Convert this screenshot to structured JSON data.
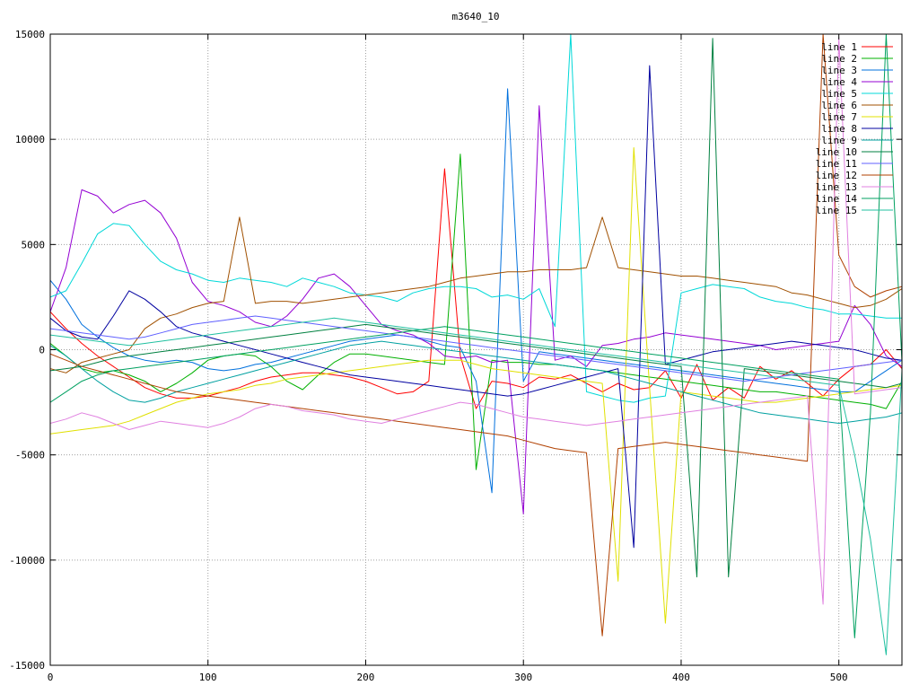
{
  "chart_data": {
    "type": "line",
    "title": "m3640_10",
    "xlabel": "",
    "ylabel": "",
    "xlim": [
      0,
      540
    ],
    "ylim": [
      -15000,
      15000
    ],
    "x_ticks": [
      0,
      100,
      200,
      300,
      400,
      500
    ],
    "y_ticks": [
      -15000,
      -10000,
      -5000,
      0,
      5000,
      10000,
      15000
    ],
    "grid": true,
    "legend_position": "top-right",
    "sample_step": 10,
    "series": [
      {
        "name": "line 1",
        "color": "#ff0000",
        "values": [
          1800,
          1000,
          300,
          -300,
          -800,
          -1300,
          -1800,
          -2100,
          -2300,
          -2300,
          -2200,
          -2000,
          -1800,
          -1500,
          -1300,
          -1200,
          -1100,
          -1100,
          -1200,
          -1300,
          -1500,
          -1800,
          -2100,
          -2000,
          -1500,
          8600,
          -300,
          -2800,
          -1500,
          -1600,
          -1800,
          -1300,
          -1400,
          -1200,
          -1600,
          -2000,
          -1600,
          -1900,
          -1800,
          -1000,
          -2300,
          -700,
          -2400,
          -1800,
          -2300,
          -800,
          -1400,
          -1000,
          -1600,
          -2200,
          -1400,
          -800,
          -700,
          0,
          -900
        ]
      },
      {
        "name": "line 2",
        "color": "#00b000",
        "values": [
          300,
          -300,
          -900,
          -1100,
          -1000,
          -1200,
          -1500,
          -2000,
          -1600,
          -1100,
          -500,
          -300,
          -200,
          -300,
          -800,
          -1500,
          -1900,
          -1200,
          -600,
          -200,
          -200,
          -300,
          -400,
          -500,
          -600,
          -700,
          9300,
          -5700,
          -500,
          -600,
          -600,
          -700,
          -700,
          -800,
          -900,
          -1000,
          -1100,
          -1200,
          -1300,
          -1400,
          -1500,
          -1600,
          -1700,
          -1800,
          -1900,
          -2000,
          -2000,
          -2100,
          -2200,
          -2300,
          -2400,
          -2500,
          -2600,
          -2800,
          -1500
        ]
      },
      {
        "name": "line 3",
        "color": "#0070dd",
        "values": [
          3300,
          2400,
          1200,
          600,
          100,
          -300,
          -500,
          -600,
          -500,
          -600,
          -900,
          -1000,
          -900,
          -700,
          -600,
          -400,
          -200,
          0,
          200,
          400,
          500,
          600,
          700,
          600,
          400,
          200,
          100,
          -1500,
          -6800,
          12400,
          -1500,
          -100,
          -200,
          -300,
          -400,
          -500,
          -600,
          -700,
          -800,
          -900,
          -1000,
          -1100,
          -1200,
          -1300,
          -1400,
          -1500,
          -1600,
          -1700,
          -1800,
          -1900,
          -2000,
          -2000,
          -1500,
          -1000,
          -500
        ]
      },
      {
        "name": "line 4",
        "color": "#9400d3",
        "values": [
          1800,
          3900,
          7600,
          7300,
          6500,
          6900,
          7100,
          6500,
          5300,
          3200,
          2300,
          2100,
          1800,
          1300,
          1100,
          1600,
          2400,
          3400,
          3600,
          3000,
          2100,
          1200,
          900,
          700,
          300,
          -300,
          -400,
          -300,
          -600,
          -500,
          -7800,
          11600,
          -500,
          -300,
          -800,
          200,
          300,
          500,
          600,
          800,
          700,
          600,
          500,
          400,
          300,
          200,
          0,
          100,
          200,
          300,
          400,
          2100,
          1200,
          -300,
          -800
        ]
      },
      {
        "name": "line 5",
        "color": "#00d8d8",
        "values": [
          2500,
          2800,
          4100,
          5500,
          6000,
          5900,
          5000,
          4200,
          3800,
          3600,
          3300,
          3200,
          3400,
          3300,
          3200,
          3000,
          3400,
          3200,
          3000,
          2700,
          2600,
          2500,
          2300,
          2700,
          2900,
          3000,
          3000,
          2900,
          2500,
          2600,
          2400,
          2900,
          1100,
          15000,
          -2000,
          -2200,
          -2400,
          -2500,
          -2300,
          -2200,
          2700,
          2900,
          3100,
          3000,
          2900,
          2500,
          2300,
          2200,
          2000,
          1900,
          1700,
          1700,
          1600,
          1500,
          1500
        ]
      },
      {
        "name": "line 6",
        "color": "#a05000",
        "values": [
          -900,
          -1100,
          -600,
          -400,
          -200,
          0,
          1000,
          1500,
          1700,
          2000,
          2200,
          2300,
          6300,
          2200,
          2300,
          2300,
          2200,
          2300,
          2400,
          2500,
          2600,
          2700,
          2800,
          2900,
          3000,
          3200,
          3400,
          3500,
          3600,
          3700,
          3700,
          3800,
          3800,
          3800,
          3900,
          6300,
          3900,
          3800,
          3700,
          3600,
          3500,
          3500,
          3400,
          3300,
          3200,
          3100,
          3000,
          2700,
          2600,
          2400,
          2200,
          2000,
          2100,
          2400,
          2900
        ]
      },
      {
        "name": "line 7",
        "color": "#e0e000",
        "values": [
          -4000,
          -3900,
          -3800,
          -3700,
          -3600,
          -3400,
          -3100,
          -2800,
          -2500,
          -2300,
          -2100,
          -2000,
          -1900,
          -1700,
          -1600,
          -1400,
          -1300,
          -1200,
          -1100,
          -1000,
          -900,
          -800,
          -700,
          -600,
          -500,
          -500,
          -500,
          -700,
          -900,
          -1000,
          -1100,
          -1200,
          -1300,
          -1400,
          -1500,
          -1600,
          -11000,
          9600,
          -1800,
          -13000,
          -2000,
          -2100,
          -2200,
          -2300,
          -2400,
          -2500,
          -2500,
          -2400,
          -2300,
          -2200,
          -2100,
          -2000,
          -1900,
          -1800,
          -1700
        ]
      },
      {
        "name": "line 8",
        "color": "#0000a0",
        "values": [
          1500,
          900,
          600,
          500,
          1600,
          2800,
          2400,
          1800,
          1100,
          800,
          600,
          400,
          200,
          0,
          -200,
          -400,
          -600,
          -800,
          -1000,
          -1200,
          -1300,
          -1400,
          -1500,
          -1600,
          -1700,
          -1800,
          -1900,
          -2000,
          -2100,
          -2200,
          -2100,
          -1900,
          -1700,
          -1500,
          -1300,
          -1100,
          -900,
          -9400,
          13500,
          -700,
          -500,
          -300,
          -100,
          0,
          100,
          200,
          300,
          400,
          300,
          200,
          100,
          0,
          -200,
          -400,
          -500
        ]
      },
      {
        "name": "line 9",
        "color": "#00a0a0",
        "values": [
          200,
          -300,
          -900,
          -1500,
          -2000,
          -2400,
          -2500,
          -2300,
          -2000,
          -1800,
          -1600,
          -1400,
          -1200,
          -1000,
          -800,
          -600,
          -400,
          -200,
          0,
          200,
          300,
          400,
          300,
          200,
          100,
          0,
          -100,
          -200,
          -300,
          -400,
          -500,
          -600,
          -700,
          -800,
          -900,
          -1000,
          -1200,
          -1400,
          -1600,
          -1800,
          -2000,
          -2200,
          -2400,
          -2600,
          -2800,
          -3000,
          -3100,
          -3200,
          -3300,
          -3400,
          -3500,
          -3400,
          -3300,
          -3200,
          -3000
        ]
      },
      {
        "name": "line 10",
        "color": "#008040",
        "values": [
          -1000,
          -900,
          -800,
          -600,
          -400,
          -300,
          -200,
          -100,
          0,
          100,
          200,
          300,
          400,
          500,
          600,
          700,
          800,
          900,
          1000,
          1100,
          1200,
          1100,
          1000,
          900,
          800,
          700,
          600,
          500,
          400,
          300,
          200,
          100,
          0,
          -100,
          -200,
          -300,
          -400,
          -500,
          -600,
          -700,
          -800,
          -10800,
          14800,
          -10800,
          -900,
          -1000,
          -1100,
          -1200,
          -1300,
          -1400,
          -1500,
          -1600,
          -1700,
          -1800,
          -1600
        ]
      },
      {
        "name": "line 11",
        "color": "#6060ff",
        "values": [
          1000,
          900,
          800,
          700,
          600,
          500,
          600,
          800,
          1000,
          1200,
          1300,
          1400,
          1500,
          1600,
          1500,
          1400,
          1300,
          1200,
          1100,
          1000,
          900,
          800,
          700,
          600,
          500,
          400,
          300,
          200,
          100,
          0,
          -100,
          -200,
          -300,
          -400,
          -500,
          -600,
          -700,
          -800,
          -900,
          -1000,
          -1100,
          -1200,
          -1300,
          -1400,
          -1500,
          -1400,
          -1300,
          -1200,
          -1100,
          -1000,
          -900,
          -800,
          -700,
          -600,
          -500
        ]
      },
      {
        "name": "line 12",
        "color": "#b04000",
        "values": [
          -200,
          -500,
          -800,
          -1000,
          -1200,
          -1400,
          -1600,
          -1800,
          -2000,
          -2100,
          -2200,
          -2300,
          -2400,
          -2500,
          -2600,
          -2700,
          -2800,
          -2900,
          -3000,
          -3100,
          -3200,
          -3300,
          -3400,
          -3500,
          -3600,
          -3700,
          -3800,
          -3900,
          -4000,
          -4100,
          -4300,
          -4500,
          -4700,
          -4800,
          -4900,
          -13600,
          -4700,
          -4600,
          -4500,
          -4400,
          -4500,
          -4600,
          -4700,
          -4800,
          -4900,
          -5000,
          -5100,
          -5200,
          -5300,
          15000,
          4500,
          3000,
          2500,
          2800,
          3000
        ]
      },
      {
        "name": "line 13",
        "color": "#e080e0",
        "values": [
          -3500,
          -3300,
          -3000,
          -3200,
          -3500,
          -3800,
          -3600,
          -3400,
          -3500,
          -3600,
          -3700,
          -3500,
          -3200,
          -2800,
          -2600,
          -2700,
          -2900,
          -3000,
          -3100,
          -3300,
          -3400,
          -3500,
          -3300,
          -3100,
          -2900,
          -2700,
          -2500,
          -2600,
          -2800,
          -3000,
          -3200,
          -3300,
          -3400,
          -3500,
          -3600,
          -3500,
          -3400,
          -3300,
          -3200,
          -3100,
          -3000,
          -2900,
          -2800,
          -2700,
          -2600,
          -2500,
          -2400,
          -2300,
          -2200,
          -12100,
          14800,
          -2100,
          -2000,
          -1900,
          -1800
        ]
      },
      {
        "name": "line 14",
        "color": "#00a060",
        "values": [
          -2500,
          -2000,
          -1500,
          -1200,
          -1000,
          -900,
          -800,
          -700,
          -600,
          -500,
          -400,
          -300,
          -200,
          -100,
          0,
          100,
          200,
          300,
          400,
          500,
          600,
          700,
          800,
          900,
          1000,
          1100,
          1000,
          900,
          800,
          700,
          600,
          500,
          400,
          300,
          200,
          100,
          0,
          -100,
          -200,
          -300,
          -400,
          -500,
          -600,
          -700,
          -800,
          -900,
          -1000,
          -1100,
          -1200,
          -1300,
          -1400,
          -13700,
          -3000,
          15000,
          -600
        ]
      },
      {
        "name": "line 15",
        "color": "#20c0a0",
        "values": [
          700,
          600,
          500,
          400,
          300,
          200,
          300,
          400,
          500,
          600,
          700,
          800,
          900,
          1000,
          1100,
          1200,
          1300,
          1400,
          1500,
          1400,
          1300,
          1200,
          1100,
          1000,
          900,
          800,
          700,
          600,
          500,
          400,
          300,
          200,
          100,
          0,
          -100,
          -200,
          -300,
          -400,
          -500,
          -600,
          -700,
          -800,
          -900,
          -1000,
          -1100,
          -1200,
          -1300,
          -1400,
          -1500,
          -1600,
          -1700,
          -5000,
          -9000,
          -14500,
          -1000
        ]
      }
    ]
  }
}
